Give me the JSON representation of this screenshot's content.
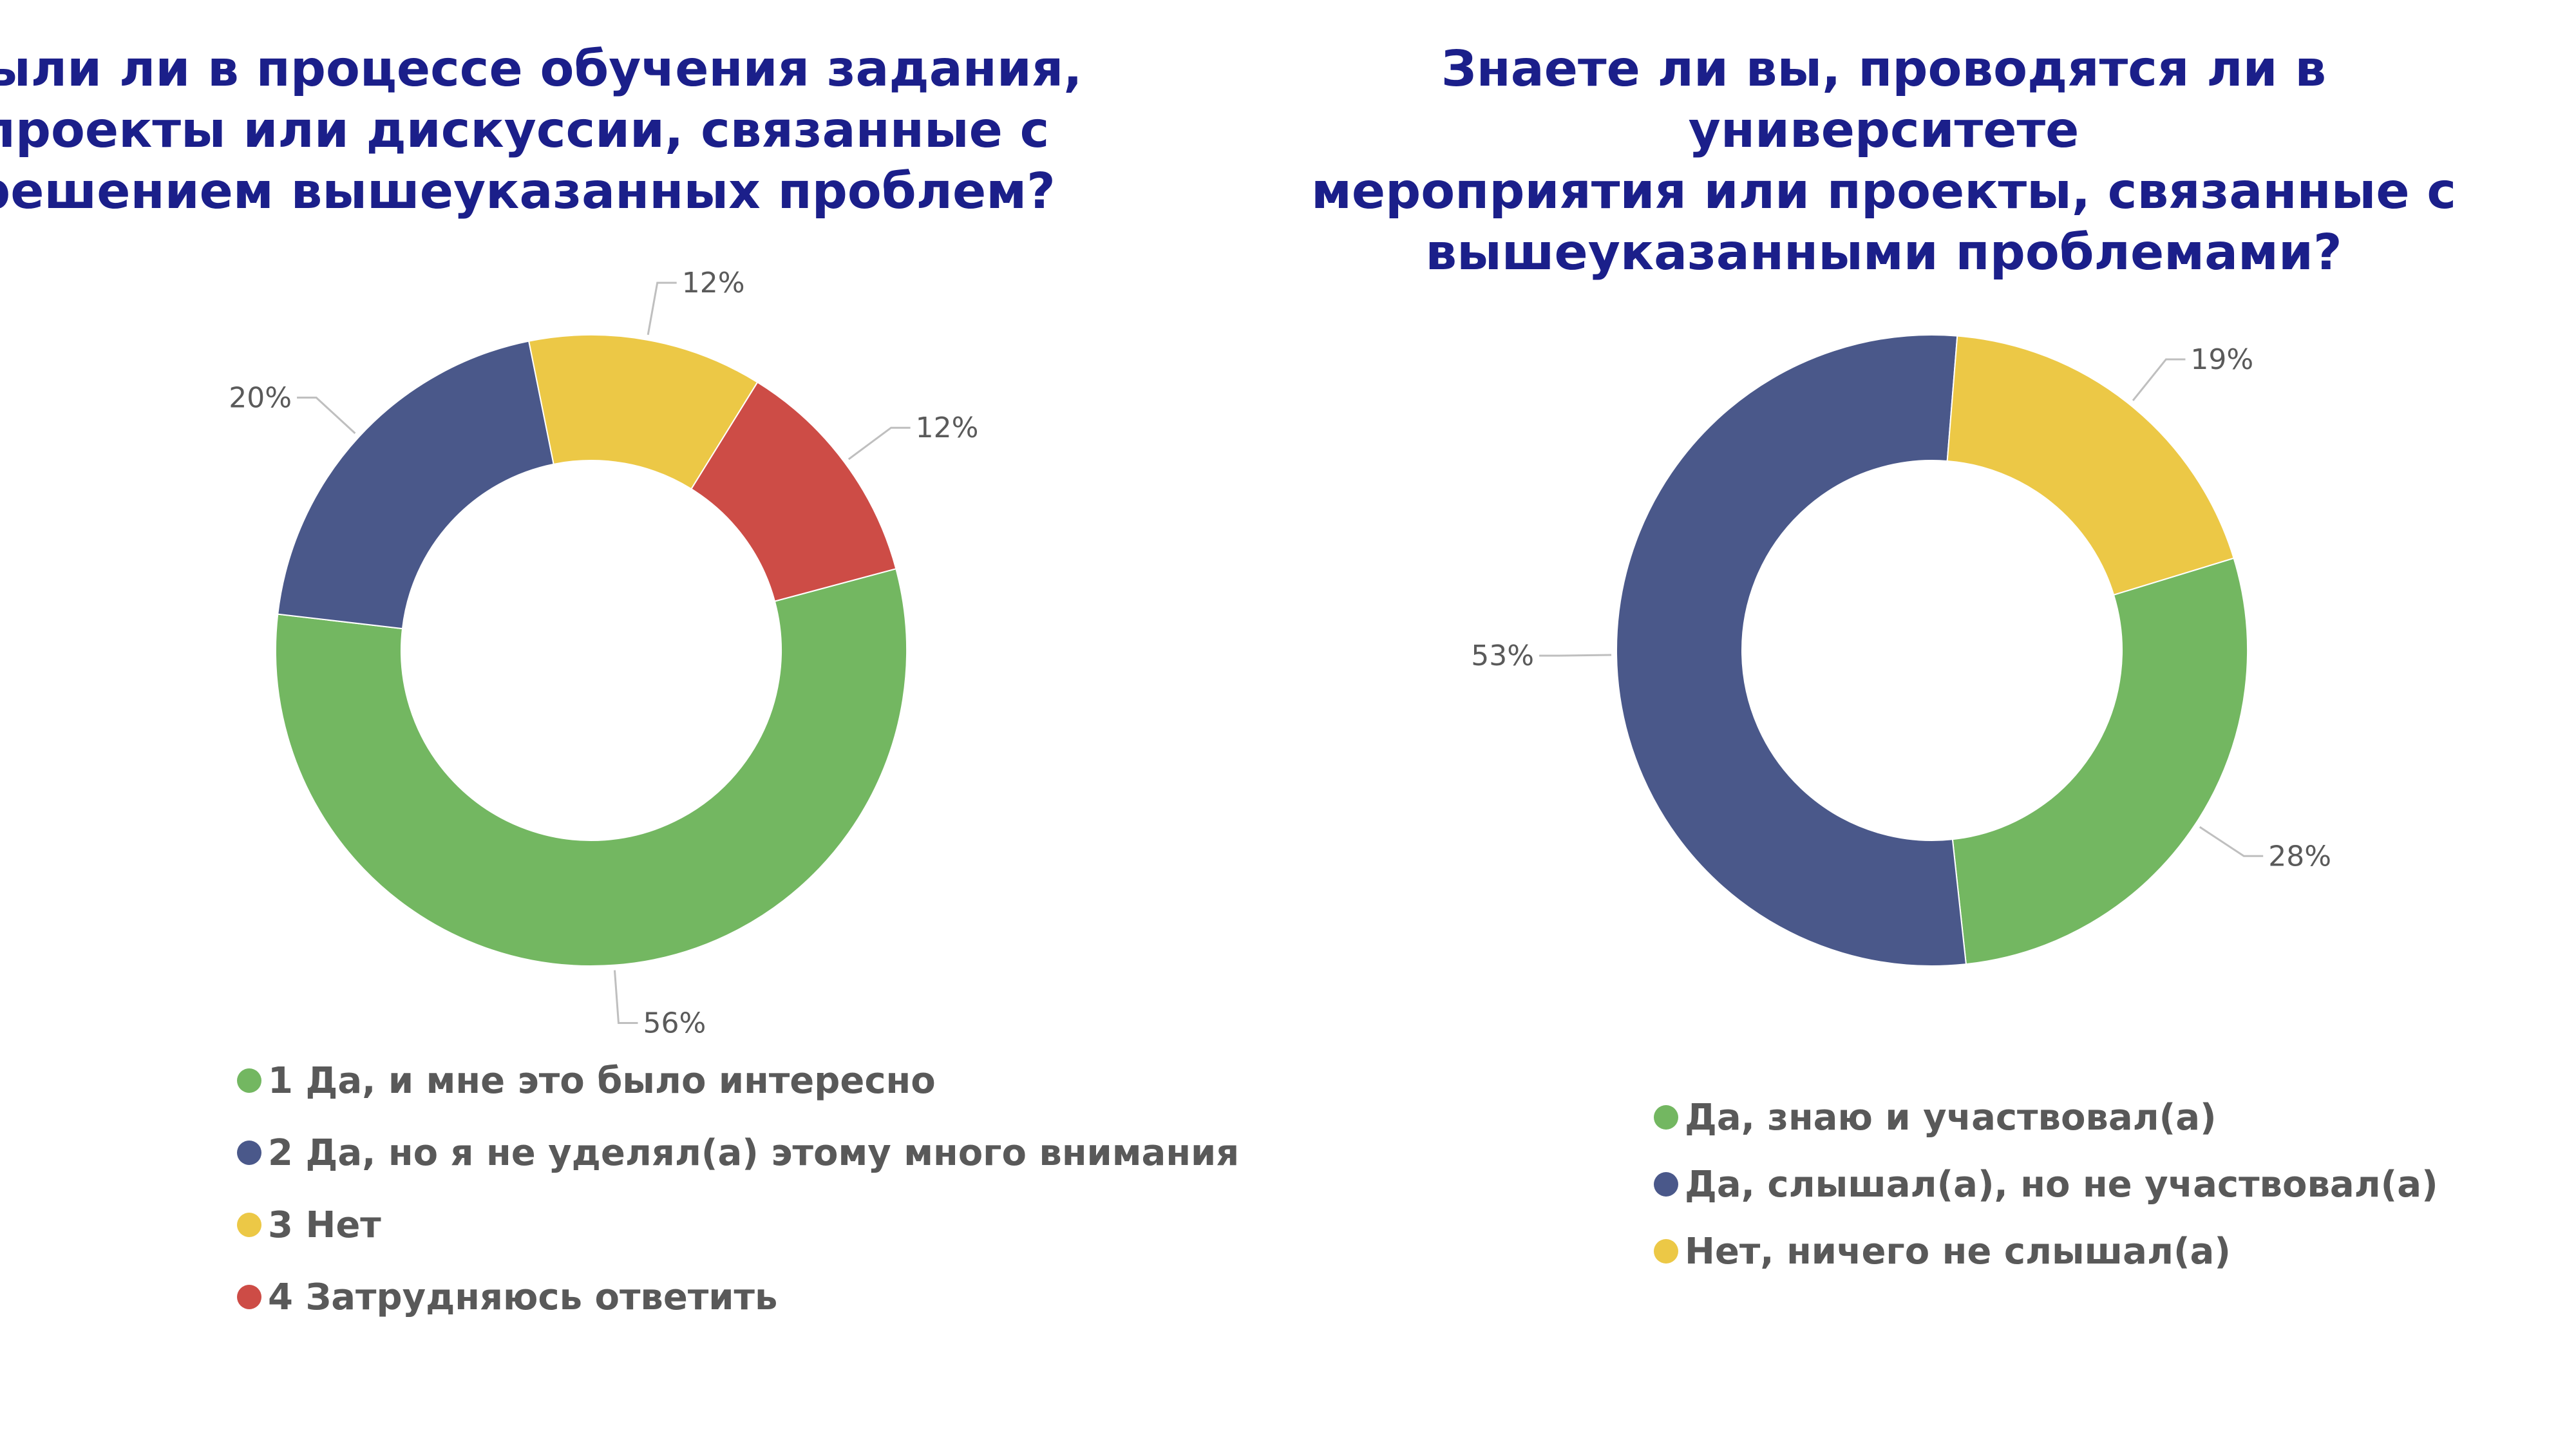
{
  "chart_data": [
    {
      "type": "donut",
      "title": "Были ли в процессе обучения задания,\nпроекты или дискуссии, связанные с\nрешением вышеуказанных проблем?",
      "categories": [
        "1 Да, и мне это было интересно",
        "2 Да, но я не уделял(а) этому много внимания",
        "3 Нет",
        "4 Затрудняюсь ответить"
      ],
      "values": [
        56,
        20,
        12,
        12
      ],
      "value_labels": [
        "56%",
        "20%",
        "12%",
        "12%"
      ],
      "colors": [
        "#73b761",
        "#4a588a",
        "#ecc846",
        "#cd4c46"
      ],
      "legend_position": "bottom-left"
    },
    {
      "type": "donut",
      "title": "Знаете ли вы, проводятся ли в университете\nмероприятия или проекты, связанные с\nвышеуказанными проблемами?",
      "categories": [
        "Да, знаю и участвовал(а)",
        "Да, слышал(а), но не участвовал(а)",
        "Нет, ничего не слышал(а)"
      ],
      "values": [
        28,
        53,
        19
      ],
      "value_labels": [
        "28%",
        "53%",
        "19%"
      ],
      "colors": [
        "#73b761",
        "#4a588a",
        "#ecc846"
      ],
      "legend_position": "bottom-left"
    }
  ]
}
